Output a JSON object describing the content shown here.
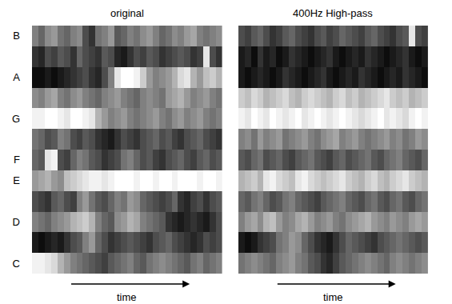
{
  "chart_data": [
    {
      "type": "heatmap",
      "title": "original",
      "x_label": "time",
      "categories": [
        "C",
        null,
        "D",
        null,
        "E",
        "F",
        null,
        "G",
        null,
        "A",
        null,
        "B"
      ],
      "zlim": [
        0,
        1
      ],
      "tick_labels": "y",
      "z": [
        [
          0.95,
          0.95,
          0.9,
          0.85,
          0.7,
          0.6,
          0.5,
          0.45,
          0.4,
          0.35,
          0.3,
          0.25,
          0.35,
          0.4,
          0.45,
          0.5,
          0.4,
          0.35,
          0.45,
          0.5,
          0.55,
          0.5,
          0.45,
          0.4,
          0.35,
          0.45,
          0.5,
          0.4,
          0.45,
          0.5
        ],
        [
          0.1,
          0.05,
          0.1,
          0.15,
          0.1,
          0.2,
          0.3,
          0.35,
          0.5,
          0.6,
          0.4,
          0.3,
          0.2,
          0.25,
          0.3,
          0.35,
          0.3,
          0.25,
          0.2,
          0.3,
          0.35,
          0.4,
          0.3,
          0.25,
          0.2,
          0.15,
          0.2,
          0.3,
          0.25,
          0.3
        ],
        [
          0.5,
          0.45,
          0.4,
          0.5,
          0.55,
          0.6,
          0.7,
          0.75,
          0.8,
          0.7,
          0.5,
          0.4,
          0.35,
          0.55,
          0.6,
          0.7,
          0.65,
          0.5,
          0.45,
          0.4,
          0.35,
          0.2,
          0.15,
          0.1,
          0.15,
          0.2,
          0.15,
          0.1,
          0.2,
          0.3
        ],
        [
          0.3,
          0.25,
          0.2,
          0.35,
          0.4,
          0.3,
          0.25,
          0.5,
          0.6,
          0.45,
          0.35,
          0.3,
          0.4,
          0.5,
          0.45,
          0.6,
          0.55,
          0.4,
          0.35,
          0.3,
          0.25,
          0.3,
          0.4,
          0.2,
          0.15,
          0.25,
          0.3,
          0.2,
          0.3,
          0.35
        ],
        [
          0.6,
          0.65,
          0.7,
          0.6,
          0.55,
          0.75,
          0.8,
          0.85,
          0.9,
          0.95,
          0.95,
          0.9,
          0.95,
          1,
          1,
          1,
          0.95,
          1,
          1,
          0.95,
          1,
          1,
          0.95,
          1,
          1,
          1,
          0.95,
          1,
          1,
          0.95
        ],
        [
          0.4,
          0.35,
          0.9,
          0.95,
          0.3,
          0.25,
          0.4,
          0.5,
          0.45,
          0.35,
          0.3,
          0.2,
          0.25,
          0.3,
          0.45,
          0.5,
          0.4,
          0.3,
          0.35,
          0.25,
          0.2,
          0.3,
          0.35,
          0.4,
          0.3,
          0.25,
          0.35,
          0.4,
          0.3,
          0.35
        ],
        [
          0.45,
          0.4,
          0.3,
          0.35,
          0.5,
          0.45,
          0.3,
          0.25,
          0.35,
          0.3,
          0.2,
          0.15,
          0.1,
          0.2,
          0.3,
          0.25,
          0.2,
          0.3,
          0.35,
          0.4,
          0.3,
          0.35,
          0.25,
          0.2,
          0.3,
          0.35,
          0.4,
          0.3,
          0.25,
          0.2
        ],
        [
          0.95,
          0.95,
          1,
          1,
          0.95,
          0.9,
          1,
          1,
          0.95,
          0.9,
          0.7,
          0.6,
          0.5,
          0.55,
          0.6,
          0.5,
          0.45,
          0.5,
          0.55,
          0.6,
          0.5,
          0.45,
          0.55,
          0.6,
          0.5,
          0.55,
          0.6,
          0.5,
          0.45,
          0.5
        ],
        [
          0.55,
          0.5,
          0.6,
          0.65,
          0.5,
          0.45,
          0.55,
          0.6,
          0.5,
          0.45,
          0.4,
          0.5,
          0.55,
          0.6,
          0.5,
          0.45,
          0.4,
          0.5,
          0.55,
          0.5,
          0.45,
          0.6,
          0.65,
          0.7,
          0.6,
          0.5,
          0.55,
          0.6,
          0.5,
          0.45
        ],
        [
          0.05,
          0.05,
          0.1,
          0.05,
          0.1,
          0.15,
          0.2,
          0.25,
          0.3,
          0.2,
          0.15,
          0.3,
          0.5,
          0.9,
          1,
          1,
          0.95,
          0.8,
          0.6,
          0.5,
          0.55,
          0.6,
          0.7,
          0.85,
          0.9,
          0.7,
          0.6,
          0.75,
          0.8,
          0.7
        ],
        [
          0.2,
          0.15,
          0.3,
          0.25,
          0.35,
          0.3,
          0.2,
          0.4,
          0.3,
          0.25,
          0.2,
          0.35,
          0.3,
          0.15,
          0.1,
          0.2,
          0.3,
          0.25,
          0.35,
          0.3,
          0.2,
          0.25,
          0.3,
          0.35,
          0.3,
          0.2,
          0.25,
          0.9,
          0.3,
          0.2
        ],
        [
          0.5,
          0.4,
          0.55,
          0.6,
          0.45,
          0.4,
          0.5,
          0.55,
          0.3,
          0.2,
          0.45,
          0.5,
          0.6,
          0.35,
          0.4,
          0.5,
          0.45,
          0.55,
          0.6,
          0.5,
          0.4,
          0.45,
          0.55,
          0.5,
          0.6,
          0.65,
          0.5,
          0.45,
          0.5,
          0.55
        ]
      ]
    },
    {
      "type": "heatmap",
      "title": "400Hz High-pass",
      "x_label": "time",
      "categories": [
        "C",
        null,
        "D",
        null,
        "E",
        "F",
        null,
        "G",
        null,
        "A",
        null,
        "B"
      ],
      "zlim": [
        0,
        1
      ],
      "tick_labels": false,
      "z": [
        [
          0.45,
          0.5,
          0.55,
          0.5,
          0.45,
          0.4,
          0.5,
          0.55,
          0.6,
          0.5,
          0.45,
          0.35,
          0.3,
          0.2,
          0.15,
          0.25,
          0.35,
          0.4,
          0.45,
          0.5,
          0.55,
          0.5,
          0.45,
          0.4,
          0.5,
          0.55,
          0.5,
          0.45,
          0.5,
          0.55
        ],
        [
          0.1,
          0.05,
          0.1,
          0.2,
          0.25,
          0.3,
          0.45,
          0.5,
          0.6,
          0.55,
          0.4,
          0.3,
          0.2,
          0.15,
          0.1,
          0.2,
          0.3,
          0.4,
          0.35,
          0.3,
          0.25,
          0.2,
          0.3,
          0.35,
          0.4,
          0.45,
          0.4,
          0.35,
          0.3,
          0.35
        ],
        [
          0.5,
          0.6,
          0.65,
          0.55,
          0.7,
          0.75,
          0.6,
          0.5,
          0.55,
          0.65,
          0.7,
          0.6,
          0.5,
          0.55,
          0.6,
          0.5,
          0.45,
          0.55,
          0.6,
          0.65,
          0.7,
          0.6,
          0.55,
          0.5,
          0.6,
          0.55,
          0.5,
          0.6,
          0.65,
          0.6
        ],
        [
          0.4,
          0.35,
          0.45,
          0.5,
          0.4,
          0.3,
          0.35,
          0.45,
          0.5,
          0.4,
          0.35,
          0.3,
          0.25,
          0.35,
          0.4,
          0.45,
          0.5,
          0.4,
          0.35,
          0.3,
          0.4,
          0.45,
          0.35,
          0.3,
          0.4,
          0.45,
          0.35,
          0.3,
          0.4,
          0.45
        ],
        [
          0.7,
          0.75,
          0.8,
          0.7,
          0.9,
          0.95,
          0.85,
          0.8,
          0.75,
          0.9,
          0.95,
          0.85,
          0.8,
          0.75,
          0.8,
          0.85,
          0.9,
          0.8,
          0.75,
          0.7,
          0.8,
          0.85,
          0.75,
          0.7,
          0.8,
          0.85,
          0.9,
          0.8,
          0.75,
          0.7
        ],
        [
          0.35,
          0.3,
          0.4,
          0.45,
          0.3,
          0.35,
          0.4,
          0.3,
          0.25,
          0.35,
          0.4,
          0.45,
          0.35,
          0.3,
          0.25,
          0.35,
          0.4,
          0.3,
          0.35,
          0.4,
          0.45,
          0.35,
          0.3,
          0.4,
          0.45,
          0.5,
          0.4,
          0.35,
          0.3,
          0.4
        ],
        [
          0.5,
          0.55,
          0.45,
          0.6,
          0.5,
          0.55,
          0.6,
          0.45,
          0.5,
          0.55,
          0.6,
          0.5,
          0.45,
          0.55,
          0.6,
          0.65,
          0.5,
          0.55,
          0.6,
          0.5,
          0.45,
          0.5,
          0.55,
          0.6,
          0.5,
          0.55,
          0.45,
          0.5,
          0.6,
          0.55
        ],
        [
          0.95,
          0.9,
          1,
          0.95,
          0.9,
          1,
          0.95,
          0.9,
          0.95,
          1,
          0.9,
          0.95,
          1,
          0.95,
          0.9,
          0.95,
          1,
          0.95,
          0.9,
          0.85,
          0.9,
          0.95,
          1,
          0.9,
          0.95,
          0.9,
          0.85,
          0.95,
          1,
          0.95
        ],
        [
          0.8,
          0.75,
          0.85,
          0.8,
          0.7,
          0.75,
          0.8,
          0.85,
          0.75,
          0.7,
          0.8,
          0.85,
          0.8,
          0.75,
          0.7,
          0.8,
          0.85,
          0.75,
          0.8,
          0.7,
          0.75,
          0.8,
          0.85,
          0.9,
          0.8,
          0.75,
          0.8,
          0.7,
          0.75,
          0.8
        ],
        [
          0.1,
          0.05,
          0.1,
          0.15,
          0.1,
          0.05,
          0.1,
          0.2,
          0.15,
          0.1,
          0.05,
          0.1,
          0.15,
          0.2,
          0.1,
          0.05,
          0.1,
          0.15,
          0.1,
          0.2,
          0.15,
          0.1,
          0.05,
          0.1,
          0.15,
          0.1,
          0.2,
          0.15,
          0.1,
          0.05
        ],
        [
          0.1,
          0.15,
          0.05,
          0.2,
          0.1,
          0.15,
          0.05,
          0.1,
          0.2,
          0.15,
          0.1,
          0.05,
          0.1,
          0.15,
          0.2,
          0.1,
          0.05,
          0.1,
          0.15,
          0.1,
          0.2,
          0.15,
          0.1,
          0.05,
          0.1,
          0.15,
          0.2,
          0.1,
          0.05,
          0.1
        ],
        [
          0.3,
          0.25,
          0.35,
          0.4,
          0.3,
          0.2,
          0.25,
          0.35,
          0.4,
          0.3,
          0.25,
          0.2,
          0.3,
          0.35,
          0.25,
          0.3,
          0.4,
          0.35,
          0.3,
          0.25,
          0.35,
          0.4,
          0.3,
          0.25,
          0.2,
          0.3,
          0.35,
          0.9,
          0.3,
          0.25
        ]
      ]
    }
  ]
}
